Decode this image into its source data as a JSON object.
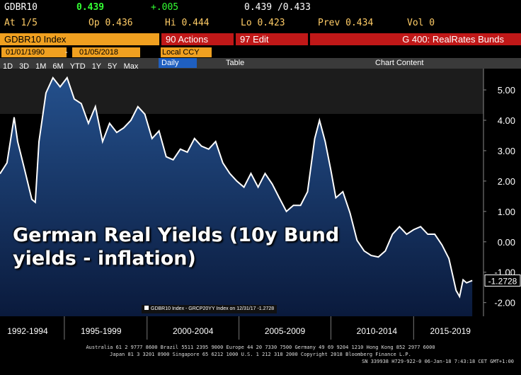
{
  "header": {
    "ticker": "GDBR10",
    "last": "0.439",
    "change": "+.005",
    "bid_ask": "0.439 /0.433",
    "at": "At 1/5",
    "open": "Op 0.436",
    "high": "Hi 0.444",
    "low": "Lo 0.423",
    "prev": "Prev 0.434",
    "volume": "Vol 0",
    "security": "GDBR10 Index",
    "actions": "90 Actions",
    "edit": "97 Edit",
    "page": "G 400: RealRates Bunds",
    "start_date": "01/01/1990",
    "date_sep": "-",
    "end_date": "01/05/2018",
    "currency": "Local CCY",
    "periods": [
      "1D",
      "3D",
      "1M",
      "6M",
      "YTD",
      "1Y",
      "5Y",
      "Max"
    ],
    "frequency": "Daily",
    "table": "Table",
    "chart_content": "Chart Content"
  },
  "chart_data": {
    "type": "line",
    "annotation": "German Real Yields (10y Bund yields - inflation)",
    "legend_text": "GDBR10 Index - GRCP20YY Index on 12/31/17 -1.2728",
    "last_value": -1.2728,
    "color": "#ffffff",
    "fill": "#1c3f73",
    "x": [
      1992.0,
      1992.38,
      1992.77,
      1992.96,
      1993.35,
      1993.73,
      1993.92,
      1994.12,
      1994.5,
      1994.88,
      1995.27,
      1995.65,
      1996.04,
      1996.42,
      1996.81,
      1997.19,
      1997.58,
      1997.96,
      1998.35,
      1998.73,
      1999.12,
      1999.5,
      1999.88,
      2000.27,
      2000.65,
      2001.04,
      2001.42,
      2001.81,
      2002.19,
      2002.58,
      2002.96,
      2003.35,
      2003.73,
      2004.12,
      2004.5,
      2004.88,
      2005.27,
      2005.65,
      2006.04,
      2006.42,
      2006.81,
      2007.19,
      2007.58,
      2007.96,
      2008.35,
      2008.73,
      2009.12,
      2009.38,
      2009.69,
      2010.0,
      2010.27,
      2010.65,
      2011.04,
      2011.42,
      2011.81,
      2012.19,
      2012.58,
      2012.96,
      2013.35,
      2013.73,
      2014.12,
      2014.5,
      2014.88,
      2015.27,
      2015.65,
      2016.04,
      2016.42,
      2016.81,
      2017.0,
      2017.19,
      2017.38,
      2017.69
    ],
    "values": [
      2.24,
      2.6,
      4.1,
      3.3,
      2.35,
      1.4,
      1.3,
      3.3,
      4.9,
      5.4,
      5.1,
      5.4,
      4.7,
      4.55,
      3.9,
      4.45,
      3.3,
      3.9,
      3.6,
      3.75,
      4.0,
      4.45,
      4.2,
      3.4,
      3.65,
      2.8,
      2.7,
      3.05,
      2.95,
      3.4,
      3.15,
      3.05,
      3.3,
      2.6,
      2.25,
      2.0,
      1.8,
      2.25,
      1.8,
      2.25,
      1.9,
      1.45,
      1.0,
      1.2,
      1.2,
      1.65,
      3.4,
      4.0,
      3.3,
      2.35,
      1.45,
      1.65,
      0.95,
      0.05,
      -0.3,
      -0.45,
      -0.5,
      -0.3,
      0.25,
      0.5,
      0.25,
      0.4,
      0.5,
      0.25,
      0.25,
      -0.1,
      -0.55,
      -1.6,
      -1.8,
      -1.25,
      -1.35,
      -1.2728
    ],
    "xlim": [
      1992,
      2018.3
    ],
    "xticks": [
      {
        "value": 1993.5,
        "label": "1992-1994"
      },
      {
        "value": 1997.5,
        "label": "1995-1999"
      },
      {
        "value": 2002.5,
        "label": "2000-2004"
      },
      {
        "value": 2007.5,
        "label": "2005-2009"
      },
      {
        "value": 2012.5,
        "label": "2010-2014"
      },
      {
        "value": 2016.5,
        "label": "2015-2019"
      }
    ],
    "ylim": [
      -2.45,
      5.7
    ],
    "yticks": [
      {
        "value": 5,
        "label": "5.00"
      },
      {
        "value": 4,
        "label": "4.00"
      },
      {
        "value": 3,
        "label": "3.00"
      },
      {
        "value": 2,
        "label": "2.00"
      },
      {
        "value": 1,
        "label": "1.00"
      },
      {
        "value": 0,
        "label": "0.00"
      },
      {
        "value": -1,
        "label": "-1.00"
      },
      {
        "value": -2,
        "label": "-2.00"
      }
    ]
  },
  "footer": {
    "line1": "Australia 61 2 9777 8600 Brazil 5511 2395 9000 Europe 44 20 7330 7500 Germany 49 69 9204 1210 Hong Kong 852 2977 6000",
    "line2": "Japan 81 3 3201 8900 Singapore 65 6212 1000 U.S. 1 212 318 2000 Copyright 2018 Bloomberg Finance L.P.",
    "line3": "SN 339938 H729-922-0 06-Jan-18 7:43:18 CET GMT+1:00"
  }
}
